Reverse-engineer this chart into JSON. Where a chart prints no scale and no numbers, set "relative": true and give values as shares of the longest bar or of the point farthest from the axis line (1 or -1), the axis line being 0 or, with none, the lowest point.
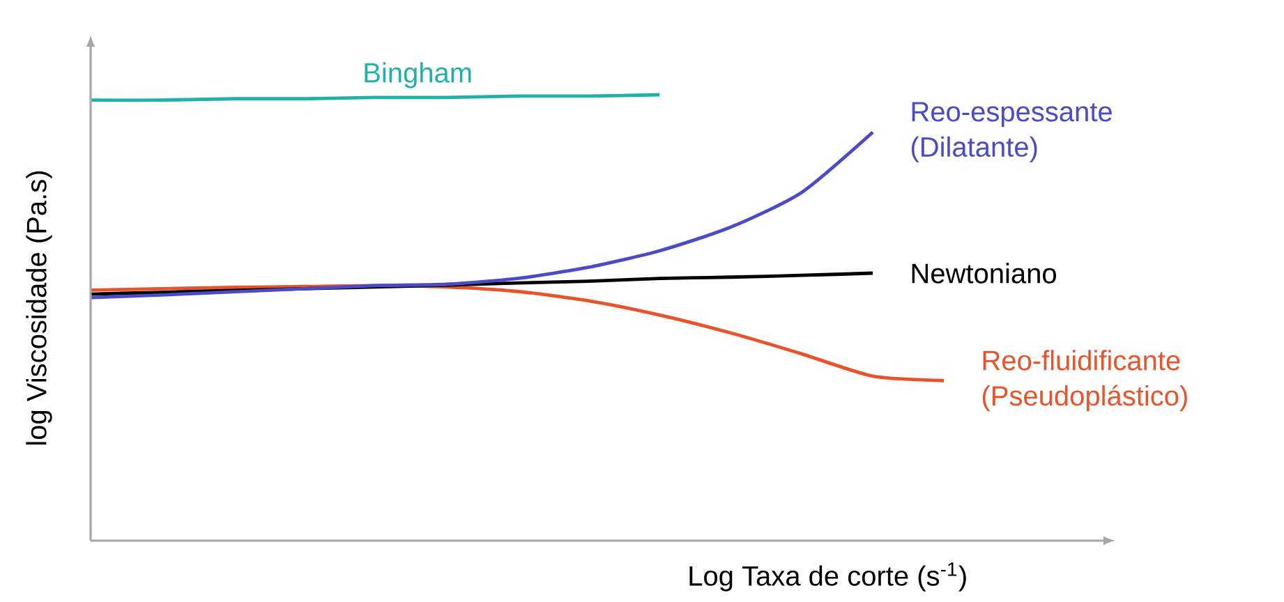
{
  "chart_data": {
    "type": "line",
    "relative": true,
    "xlabel": "Log Taxa de corte (s$^{-1}$)",
    "ylabel": "log Viscosidade (Pa.s)",
    "categories": [
      null,
      null,
      null,
      null,
      null,
      null,
      null,
      null,
      null,
      null,
      null,
      null,
      null
    ],
    "series": [
      {
        "name": "Bingham",
        "color": "#20b2aa",
        "values": [
          0.988,
          0.988,
          0.991,
          0.991,
          0.994,
          0.994,
          0.997,
          0.997,
          1.0,
          null,
          null,
          null,
          null
        ]
      },
      {
        "name": "Reo-espessante (Dilatante)",
        "color": "#4b4bc8",
        "values": [
          0.545,
          0.551,
          0.558,
          0.565,
          0.572,
          0.575,
          0.588,
          0.613,
          0.65,
          0.703,
          0.781,
          0.916,
          null
        ]
      },
      {
        "name": "Newtoniano",
        "color": "#000000",
        "values": [
          0.553,
          0.557,
          0.561,
          0.565,
          0.569,
          0.573,
          0.578,
          0.582,
          0.588,
          0.591,
          0.595,
          0.6,
          null
        ]
      },
      {
        "name": "Reo-fluidificante (Pseudoplástico)",
        "color": "#e8532a",
        "values": [
          0.562,
          0.565,
          0.568,
          0.57,
          0.572,
          0.569,
          0.559,
          0.538,
          0.506,
          0.466,
          0.419,
          0.369,
          0.359
        ]
      }
    ]
  }
}
